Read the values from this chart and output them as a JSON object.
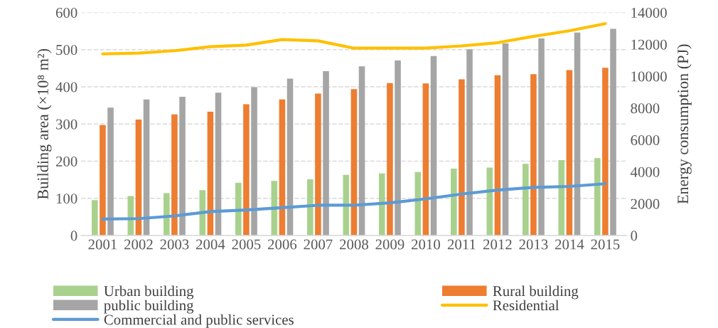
{
  "chart_data": {
    "type": "bar",
    "categories": [
      "2001",
      "2002",
      "2003",
      "2004",
      "2005",
      "2006",
      "2007",
      "2008",
      "2009",
      "2010",
      "2011",
      "2012",
      "2013",
      "2014",
      "2015"
    ],
    "ylabel": "Building area (×10⁸ m²)",
    "y2label": "Energy consumption (PJ)",
    "ylim": [
      0,
      600
    ],
    "yticks": [
      0,
      100,
      200,
      300,
      400,
      500,
      600
    ],
    "y2lim": [
      0,
      14000
    ],
    "y2ticks": [
      0,
      2000,
      4000,
      6000,
      8000,
      10000,
      12000,
      14000
    ],
    "grid": "y",
    "legend": "bottom",
    "series": [
      {
        "name": "Urban building",
        "color": "#a9d18e",
        "values": [
          95,
          106,
          114,
          122,
          142,
          147,
          151,
          163,
          167,
          171,
          180,
          183,
          193,
          203,
          208
        ]
      },
      {
        "name": "Rural building",
        "color": "#ed7d31",
        "values": [
          297,
          312,
          326,
          333,
          353,
          366,
          382,
          394,
          410,
          409,
          420,
          431,
          434,
          445,
          451
        ]
      },
      {
        "name": "public building",
        "color": "#a5a5a5",
        "values": [
          344,
          366,
          373,
          384,
          399,
          422,
          442,
          455,
          471,
          483,
          501,
          517,
          530,
          546,
          556
        ]
      },
      {
        "name": "Residential",
        "type": "line",
        "axis": "y2",
        "color": "#ffc000",
        "values": [
          11400,
          11450,
          11600,
          11850,
          11950,
          12300,
          12220,
          11760,
          11760,
          11760,
          11900,
          12100,
          12500,
          12850,
          13300
        ]
      },
      {
        "name": "Commercial and public services",
        "type": "line",
        "axis": "y2",
        "color": "#5b9bd5",
        "values": [
          1030,
          1060,
          1230,
          1500,
          1600,
          1750,
          1900,
          1900,
          2050,
          2300,
          2600,
          2850,
          3020,
          3080,
          3250
        ]
      }
    ]
  }
}
